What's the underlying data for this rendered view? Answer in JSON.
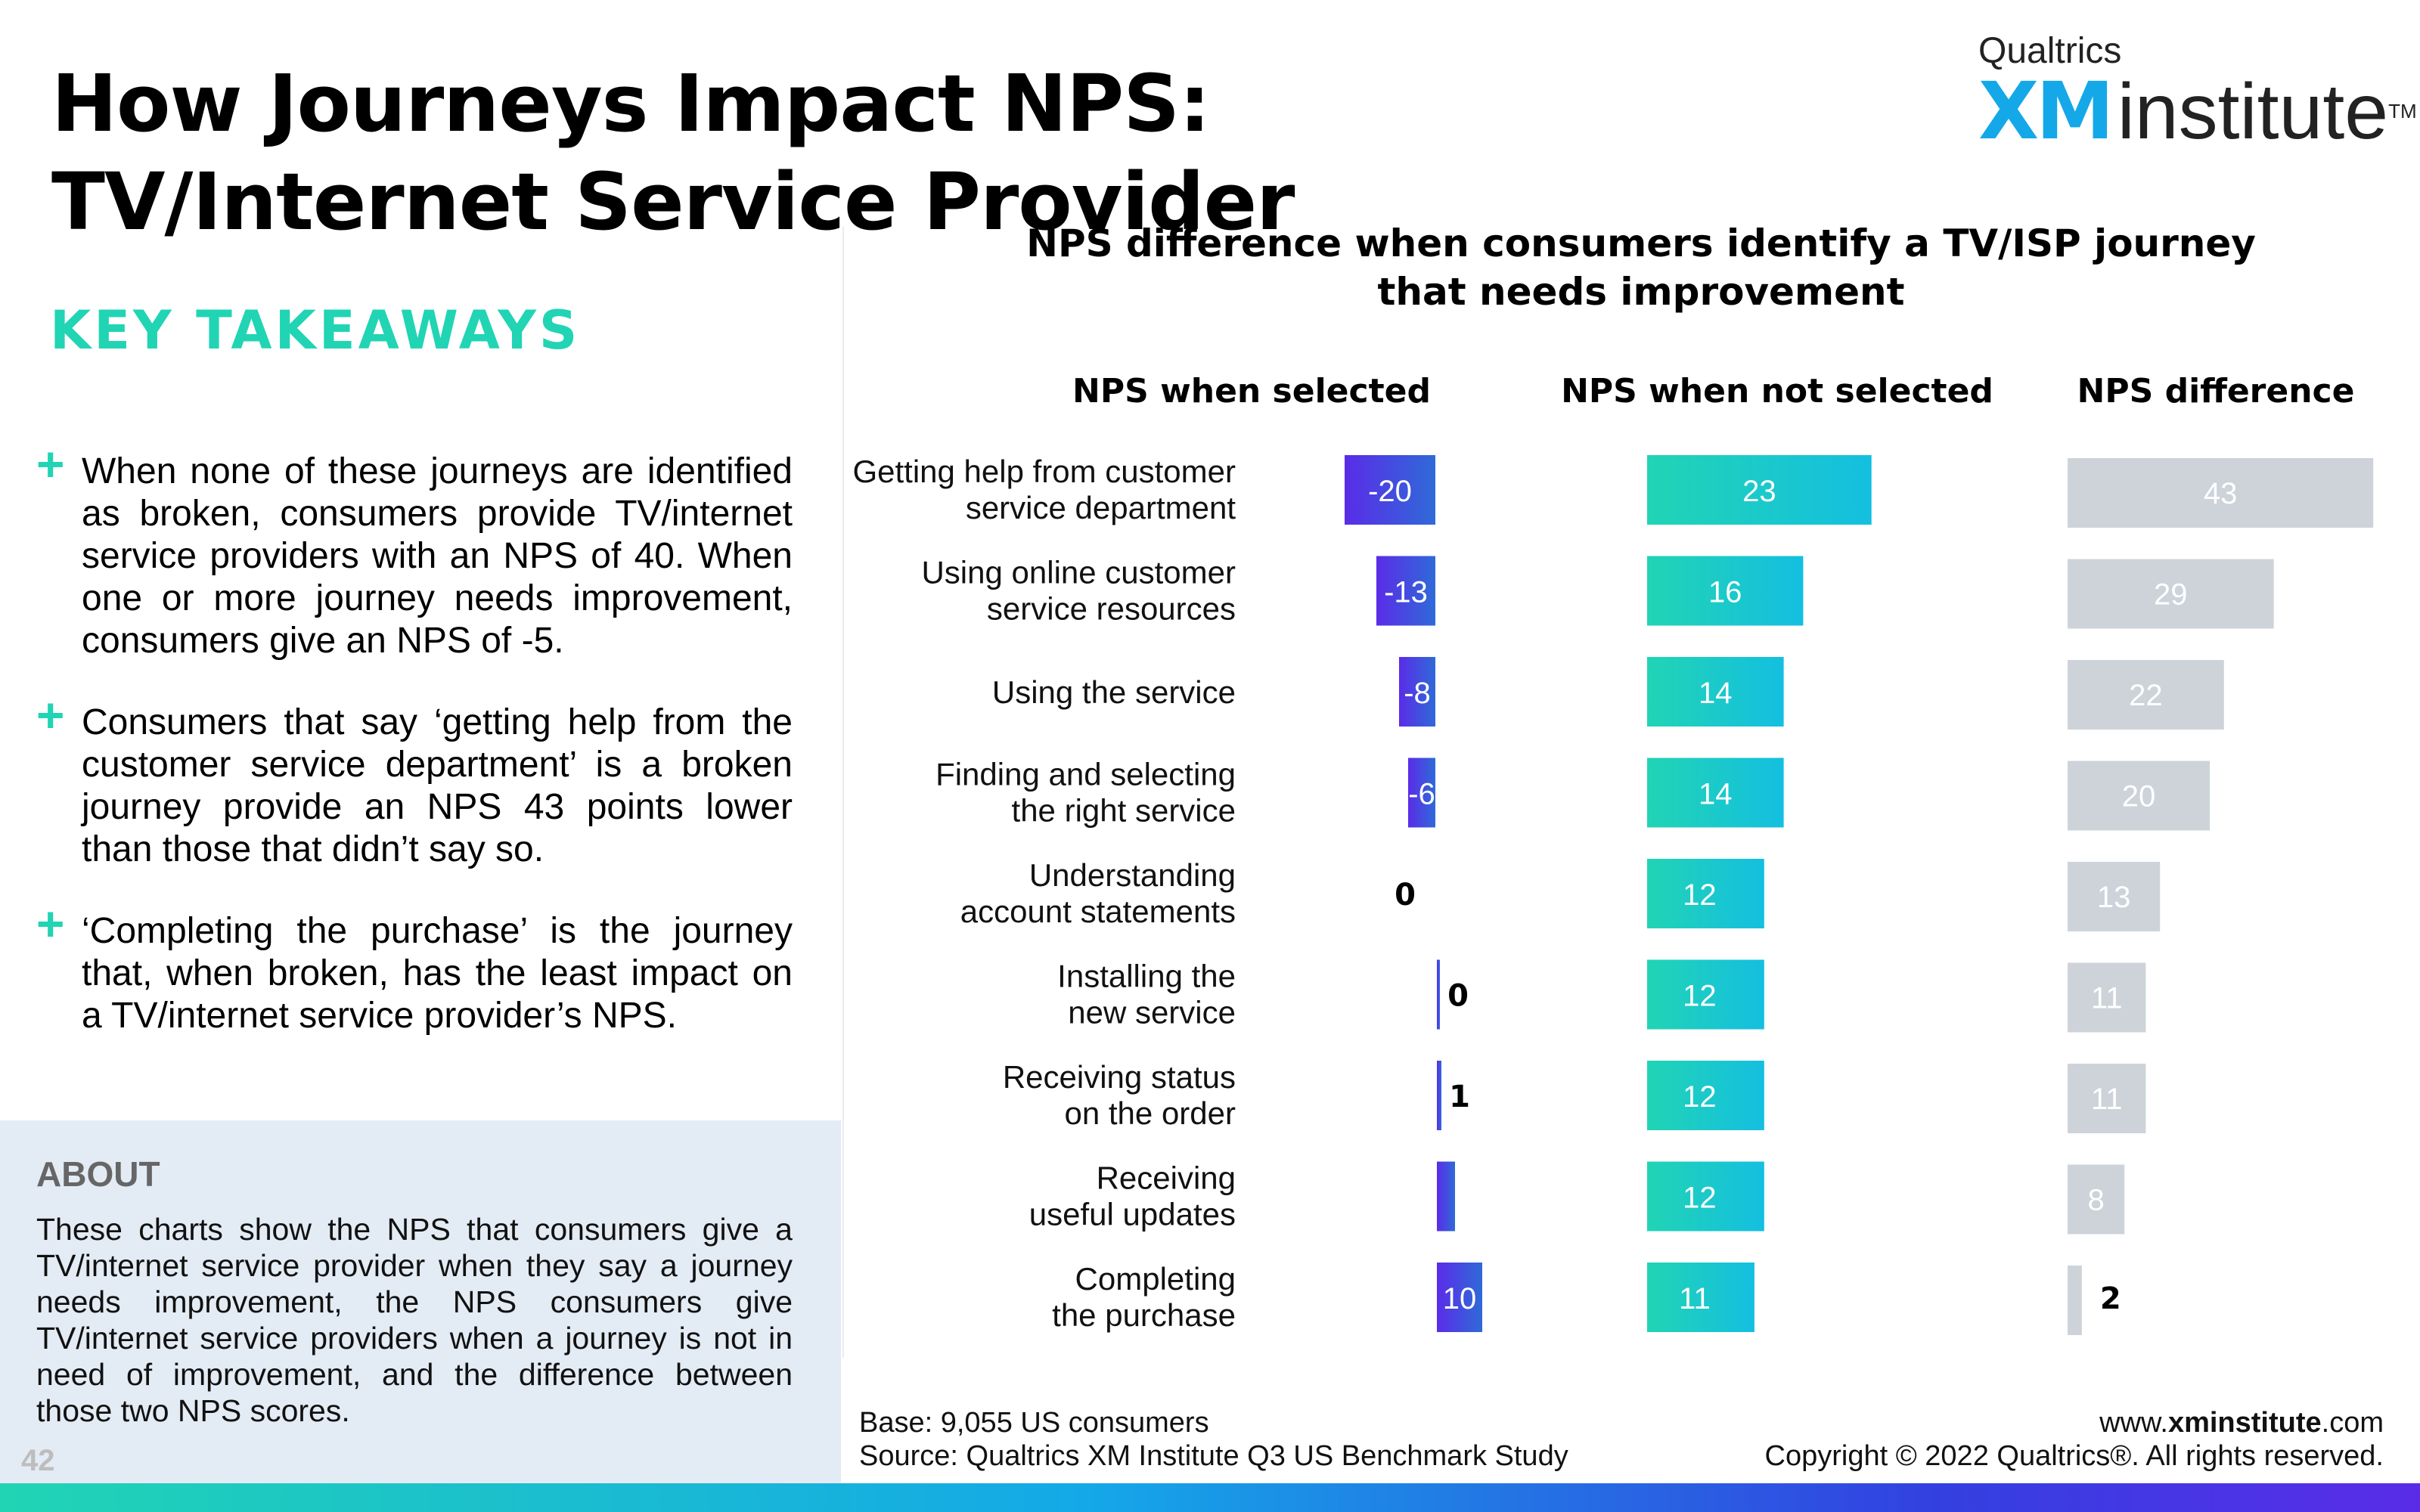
{
  "title": "How Journeys Impact NPS: TV/Internet Service Provider",
  "logo": {
    "small": "Qualtrics",
    "xm": "XM",
    "institute": "institute",
    "tm": "TM"
  },
  "key_takeaways_heading": "KEY TAKEAWAYS",
  "takeaways": [
    "When none of these journeys are identified as broken, consumers provide TV/internet service providers with an NPS of 40. When one or more journey needs improvement, consumers give an NPS of -5.",
    "Consumers that say ‘getting help from the customer service department’ is a broken journey provide an NPS 43 points lower than those that didn’t say so.",
    "‘Completing the purchase’ is the journey that, when broken, has the least impact on a TV/internet service provider’s NPS."
  ],
  "about": {
    "heading": "ABOUT",
    "text": "These charts show the NPS that consumers give a TV/internet service provider when they say a journey needs improvement, the NPS consumers give TV/internet service providers when a journey is not in need of improvement, and the difference between those two NPS scores."
  },
  "page_number": "42",
  "footer": {
    "base": "Base: 9,055 US consumers",
    "source": "Source: Qualtrics XM Institute Q3 US Benchmark Study",
    "url_prefix": "www.",
    "url_bold": "xminstitute",
    "url_suffix": ".com",
    "copyright": "Copyright © 2022 Qualtrics®. All rights reserved."
  },
  "colors": {
    "teal": "#21d4b4",
    "blue": "#14a8e8",
    "purple": "#5a2ce8",
    "gray_bar": "#cdd3d9",
    "about_bg": "#e3ebf4"
  },
  "chart_data": {
    "type": "bar",
    "orientation": "horizontal",
    "title": "NPS difference when consumers identify a TV/ISP journey that needs improvement",
    "categories": [
      "Getting help from customer service department",
      "Using online customer service resources",
      "Using the service",
      "Finding and selecting the right service",
      "Understanding account statements",
      "Installing the new service",
      "Receiving status on the order",
      "Receiving useful updates",
      "Completing the purchase"
    ],
    "series": [
      {
        "name": "NPS when selected",
        "values": [
          -20,
          -13,
          -8,
          -6,
          0,
          0,
          1,
          4,
          10
        ]
      },
      {
        "name": "NPS when not selected",
        "values": [
          23,
          16,
          14,
          14,
          12,
          12,
          12,
          12,
          11
        ]
      },
      {
        "name": "NPS difference",
        "values": [
          43,
          29,
          22,
          20,
          13,
          11,
          11,
          8,
          2
        ]
      }
    ]
  }
}
